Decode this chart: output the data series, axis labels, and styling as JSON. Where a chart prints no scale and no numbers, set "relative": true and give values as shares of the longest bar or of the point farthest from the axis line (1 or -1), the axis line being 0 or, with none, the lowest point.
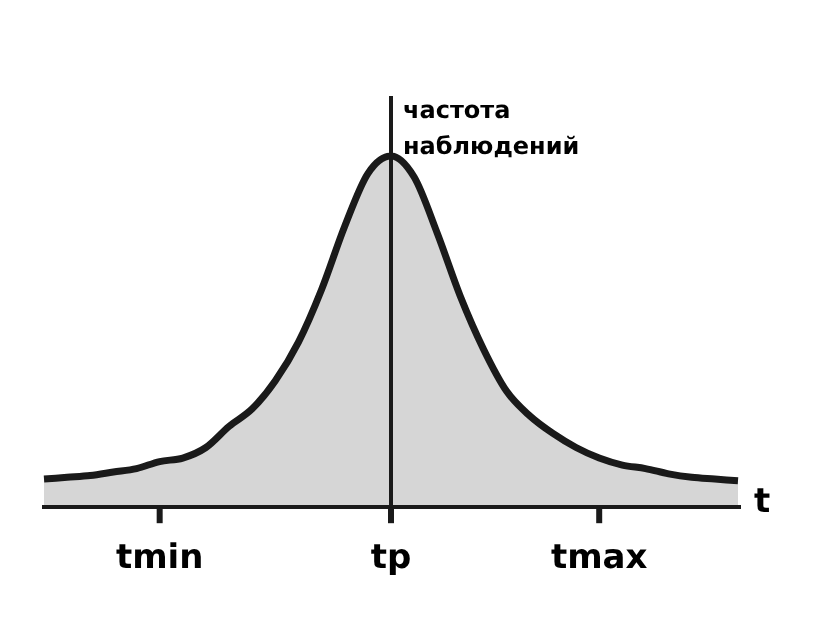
{
  "chart_data": {
    "type": "area",
    "relative": true,
    "xlabel": "t",
    "ylabel": "частота наблюдений",
    "color": "#1a1a1a",
    "categories": [
      null,
      null,
      null,
      null,
      null,
      "tmin",
      null,
      null,
      null,
      null,
      null,
      null,
      null,
      null,
      null,
      "tp",
      null,
      null,
      null,
      null,
      null,
      null,
      null,
      null,
      "tmax",
      null,
      null,
      null,
      null,
      null,
      null
    ],
    "values": [
      0.08,
      0.085,
      0.09,
      0.1,
      0.11,
      0.13,
      0.14,
      0.17,
      0.23,
      0.28,
      0.36,
      0.47,
      0.62,
      0.8,
      0.95,
      1.0,
      0.94,
      0.78,
      0.6,
      0.45,
      0.33,
      0.26,
      0.21,
      0.17,
      0.14,
      0.12,
      0.11,
      0.095,
      0.085,
      0.08,
      0.075
    ],
    "legend": false,
    "marker": "none",
    "line_style": "solid"
  }
}
